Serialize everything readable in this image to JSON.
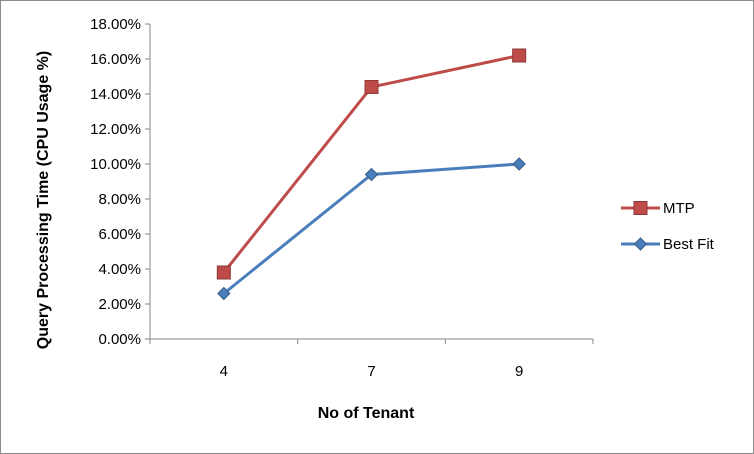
{
  "chart_data": {
    "type": "line",
    "xlabel": "No of Tenant",
    "ylabel": "Query  Processing Time (CPU Usage %)",
    "categories": [
      "4",
      "7",
      "9"
    ],
    "ylim": [
      0,
      18
    ],
    "yticks": [
      "0.00%",
      "2.00%",
      "4.00%",
      "6.00%",
      "8.00%",
      "10.00%",
      "12.00%",
      "14.00%",
      "16.00%",
      "18.00%"
    ],
    "series": [
      {
        "name": "MTP",
        "values": [
          3.8,
          14.4,
          16.2
        ],
        "color": "#be4b48",
        "marker": "square"
      },
      {
        "name": "Best Fit",
        "values": [
          2.6,
          9.4,
          10.0
        ],
        "color": "#4a7ebb",
        "marker": "diamond"
      }
    ],
    "grid": false,
    "legend_position": "right"
  }
}
